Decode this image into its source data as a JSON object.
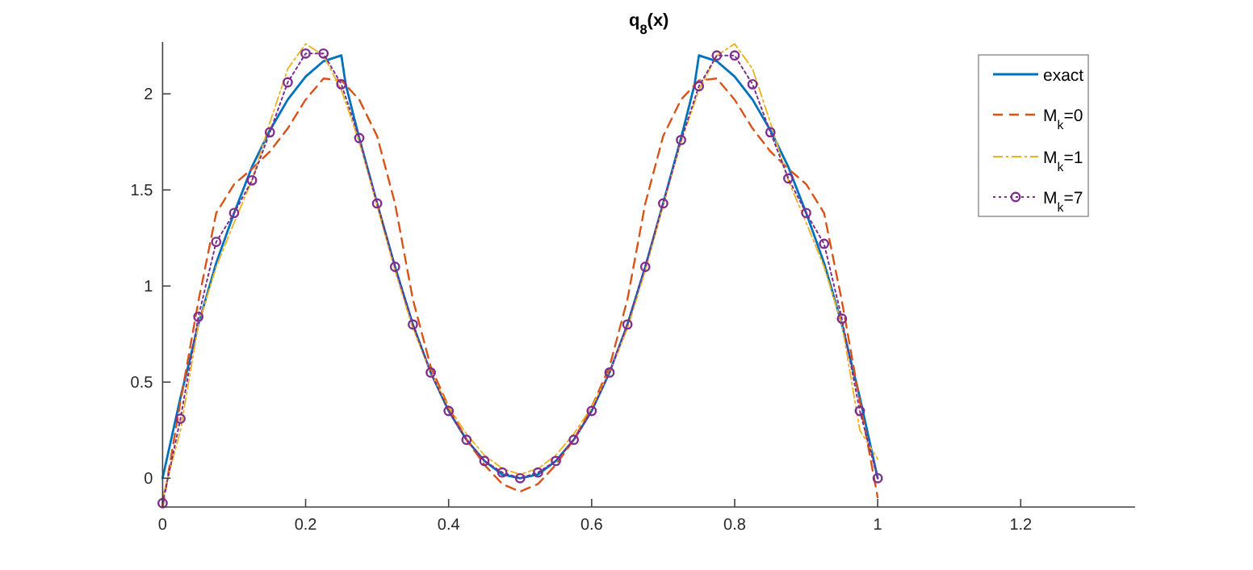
{
  "chart_data": {
    "type": "line",
    "title": "q$_{8}$(x)",
    "xlim": [
      0,
      1.36
    ],
    "ylim": [
      -0.15,
      2.27
    ],
    "xticks": [
      0,
      0.2,
      0.4,
      0.6,
      0.8,
      1,
      1.2
    ],
    "yticks": [
      0,
      0.5,
      1,
      1.5,
      2
    ],
    "grid": false,
    "legend": "top right",
    "x": [
      0,
      0.025,
      0.05,
      0.075,
      0.1,
      0.125,
      0.15,
      0.175,
      0.2,
      0.225,
      0.25,
      0.275,
      0.3,
      0.325,
      0.35,
      0.375,
      0.4,
      0.425,
      0.45,
      0.475,
      0.5,
      0.525,
      0.55,
      0.575,
      0.6,
      0.625,
      0.65,
      0.675,
      0.7,
      0.725,
      0.75,
      0.775,
      0.8,
      0.825,
      0.85,
      0.875,
      0.9,
      0.925,
      0.95,
      0.975,
      1
    ],
    "series": [
      {
        "name": "exact",
        "color": "#0072bd",
        "line_style": "solid",
        "marker": "none",
        "x": [
          0,
          0.025,
          0.05,
          0.075,
          0.1,
          0.125,
          0.15,
          0.175,
          0.2,
          0.225,
          0.25,
          0.256,
          0.275,
          0.3,
          0.325,
          0.35,
          0.375,
          0.4,
          0.425,
          0.45,
          0.475,
          0.5,
          0.525,
          0.55,
          0.575,
          0.6,
          0.625,
          0.65,
          0.675,
          0.7,
          0.725,
          0.744,
          0.75,
          0.775,
          0.8,
          0.825,
          0.85,
          0.875,
          0.9,
          0.925,
          0.95,
          0.975,
          1
        ],
        "values": [
          0,
          0.42,
          0.8,
          1.12,
          1.38,
          1.62,
          1.81,
          1.97,
          2.09,
          2.17,
          2.2,
          2.05,
          1.77,
          1.43,
          1.1,
          0.8,
          0.55,
          0.35,
          0.2,
          0.09,
          0.02,
          0,
          0.02,
          0.09,
          0.2,
          0.35,
          0.55,
          0.8,
          1.1,
          1.43,
          1.77,
          2.05,
          2.2,
          2.17,
          2.09,
          1.97,
          1.81,
          1.62,
          1.38,
          1.12,
          0.8,
          0.42,
          0
        ]
      },
      {
        "name": "M$_{k}$=0",
        "color": "#d95319",
        "line_style": "dashed",
        "marker": "none",
        "values": [
          -0.15,
          0.4,
          0.92,
          1.38,
          1.53,
          1.61,
          1.7,
          1.82,
          1.97,
          2.08,
          2.07,
          1.97,
          1.78,
          1.43,
          0.93,
          0.58,
          0.37,
          0.2,
          0.07,
          -0.03,
          -0.07,
          -0.03,
          0.07,
          0.2,
          0.37,
          0.58,
          0.93,
          1.43,
          1.78,
          1.97,
          2.07,
          2.08,
          1.97,
          1.82,
          1.7,
          1.61,
          1.53,
          1.38,
          0.92,
          0.4,
          -0.1
        ]
      },
      {
        "name": "M$_{k}$=1",
        "color": "#edb120",
        "line_style": "dashdot",
        "marker": "none",
        "values": [
          -0.1,
          0.25,
          0.8,
          1.1,
          1.33,
          1.55,
          1.85,
          2.13,
          2.26,
          2.2,
          2.02,
          1.75,
          1.42,
          1.08,
          0.78,
          0.55,
          0.37,
          0.23,
          0.12,
          0.05,
          0.02,
          0.05,
          0.12,
          0.23,
          0.37,
          0.55,
          0.78,
          1.08,
          1.42,
          1.75,
          2.02,
          2.2,
          2.26,
          2.13,
          1.85,
          1.55,
          1.33,
          1.1,
          0.8,
          0.25,
          0.1
        ]
      },
      {
        "name": "M$_{k}$=7",
        "color": "#7e2f8e",
        "line_style": "dotted",
        "marker": "circle",
        "values": [
          -0.13,
          0.31,
          0.84,
          1.23,
          1.38,
          1.55,
          1.8,
          2.06,
          2.21,
          2.21,
          2.05,
          1.77,
          1.43,
          1.1,
          0.8,
          0.55,
          0.35,
          0.2,
          0.09,
          0.03,
          0,
          0.03,
          0.09,
          0.2,
          0.35,
          0.55,
          0.8,
          1.1,
          1.43,
          1.76,
          2.04,
          2.2,
          2.2,
          2.05,
          1.8,
          1.56,
          1.38,
          1.22,
          0.83,
          0.35,
          0
        ]
      }
    ]
  }
}
